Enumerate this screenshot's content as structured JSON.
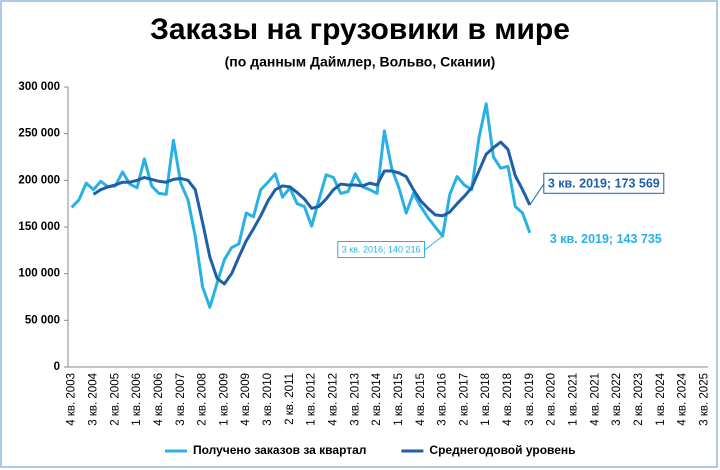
{
  "chart_data": {
    "type": "line",
    "title": "Заказы на грузовики в мире",
    "subtitle": "(по данным Даймлер, Вольво, Скании)",
    "categories": [
      "4 кв. 2003",
      null,
      null,
      "3 кв. 2004",
      null,
      null,
      "2 кв. 2005",
      null,
      null,
      "1 кв. 2006",
      null,
      null,
      "4 кв. 2006",
      null,
      null,
      "3 кв. 2007",
      null,
      null,
      "2 кв. 2008",
      null,
      null,
      "1 кв. 2009",
      null,
      null,
      "4 кв. 2009",
      null,
      null,
      "3 кв. 2010",
      null,
      null,
      "2 кв. 2011",
      null,
      null,
      "1 кв. 2012",
      null,
      null,
      "4 кв. 2012",
      null,
      null,
      "3 кв. 2013",
      null,
      null,
      "2 кв. 2014",
      null,
      null,
      "1 кв. 2015",
      null,
      null,
      "4 кв. 2015",
      null,
      null,
      "3 кв. 2016",
      null,
      null,
      "2 кв. 2017",
      null,
      null,
      "1 кв. 2018",
      null,
      null,
      "4 кв. 2018",
      null,
      null,
      "3 кв. 2019",
      null,
      null,
      "2 кв. 2020",
      null,
      null,
      "1 кв. 2021",
      null,
      null,
      "4 кв. 2021",
      null,
      null,
      "3 кв. 2022",
      null,
      null,
      "2 кв. 2023",
      null,
      null,
      "1 кв. 2024",
      null,
      null,
      "4 кв. 2024",
      null,
      null,
      "3 кв. 2025"
    ],
    "series": [
      {
        "name": "Получено заказов за квартал",
        "color": "#29b1e4",
        "values": [
          171000,
          179000,
          197000,
          190000,
          199000,
          193000,
          194000,
          209000,
          196000,
          192000,
          223000,
          194000,
          186000,
          185000,
          243000,
          197000,
          179000,
          140000,
          86000,
          64000,
          90000,
          115000,
          128000,
          132000,
          165000,
          161000,
          190000,
          198000,
          207000,
          182000,
          192000,
          175000,
          172000,
          151000,
          179000,
          206000,
          203000,
          186000,
          188000,
          207000,
          193000,
          190000,
          186000,
          253000,
          213000,
          192000,
          165000,
          186000,
          172000,
          160000,
          150000,
          140216,
          185000,
          204000,
          195000,
          190000,
          245000,
          282000,
          225000,
          213000,
          215000,
          172000,
          165000,
          143735,
          null,
          null,
          null,
          null,
          null,
          null,
          null,
          null,
          null,
          null,
          null,
          null,
          null,
          null,
          null,
          null,
          null,
          null,
          null,
          null,
          null,
          null,
          null,
          null
        ],
        "value_labels": [
          null,
          null,
          null,
          null,
          null,
          null,
          null,
          null,
          null,
          null,
          null,
          null,
          null,
          null,
          null,
          null,
          null,
          null,
          null,
          null,
          null,
          null,
          null,
          null,
          null,
          null,
          null,
          null,
          null,
          null,
          null,
          null,
          null,
          null,
          null,
          null,
          null,
          null,
          null,
          null,
          null,
          null,
          null,
          null,
          null,
          null,
          null,
          null,
          null,
          null,
          null,
          "3 кв. 2016; 140 216",
          null,
          null,
          null,
          null,
          null,
          null,
          null,
          null,
          null,
          null,
          null,
          "3 кв. 2019; 143 735",
          null,
          null,
          null,
          null,
          null,
          null,
          null,
          null,
          null,
          null,
          null,
          null,
          null,
          null,
          null,
          null,
          null,
          null,
          null,
          null,
          null,
          null,
          null,
          null
        ]
      },
      {
        "name": "Среднегодовой уровень",
        "color": "#1f5fa6",
        "values": [
          null,
          null,
          null,
          185000,
          190000,
          193000,
          195000,
          198000,
          198000,
          200000,
          203000,
          201000,
          199000,
          198000,
          201000,
          202000,
          200000,
          190000,
          155000,
          118000,
          95000,
          89000,
          100000,
          118000,
          135000,
          148000,
          162000,
          178000,
          190000,
          194000,
          193000,
          187000,
          180000,
          170000,
          172000,
          180000,
          190000,
          196000,
          195000,
          195000,
          194000,
          197000,
          195000,
          210000,
          210000,
          208000,
          204000,
          190000,
          178000,
          170000,
          163000,
          162000,
          166000,
          175000,
          183000,
          192000,
          210000,
          228000,
          235000,
          241000,
          233000,
          205000,
          190000,
          173569,
          null,
          null,
          null,
          null,
          null,
          null,
          null,
          null,
          null,
          null,
          null,
          null,
          null,
          null,
          null,
          null,
          null,
          null,
          null,
          null,
          null,
          null,
          null,
          null
        ],
        "value_labels": [
          null,
          null,
          null,
          null,
          null,
          null,
          null,
          null,
          null,
          null,
          null,
          null,
          null,
          null,
          null,
          null,
          null,
          null,
          null,
          null,
          null,
          null,
          null,
          null,
          null,
          null,
          null,
          null,
          null,
          null,
          null,
          null,
          null,
          null,
          null,
          null,
          null,
          null,
          null,
          null,
          null,
          null,
          null,
          null,
          null,
          null,
          null,
          null,
          null,
          null,
          null,
          null,
          null,
          null,
          null,
          null,
          null,
          null,
          null,
          null,
          null,
          null,
          null,
          "3 кв. 2019; 173 569",
          null,
          null,
          null,
          null,
          null,
          null,
          null,
          null,
          null,
          null,
          null,
          null,
          null,
          null,
          null,
          null,
          null,
          null,
          null,
          null,
          null,
          null,
          null,
          null
        ]
      }
    ],
    "ylim": [
      0,
      300000
    ],
    "yticks": [
      0,
      {
        "value": 50000,
        "label": "50 000"
      },
      {
        "value": 100000,
        "label": "100 000"
      },
      {
        "value": 150000,
        "label": "150 000"
      },
      {
        "value": 200000,
        "label": "200 000"
      },
      {
        "value": 250000,
        "label": "250 000"
      },
      {
        "value": 300000,
        "label": "300 000"
      }
    ],
    "grid": false,
    "legend": "bottom"
  }
}
